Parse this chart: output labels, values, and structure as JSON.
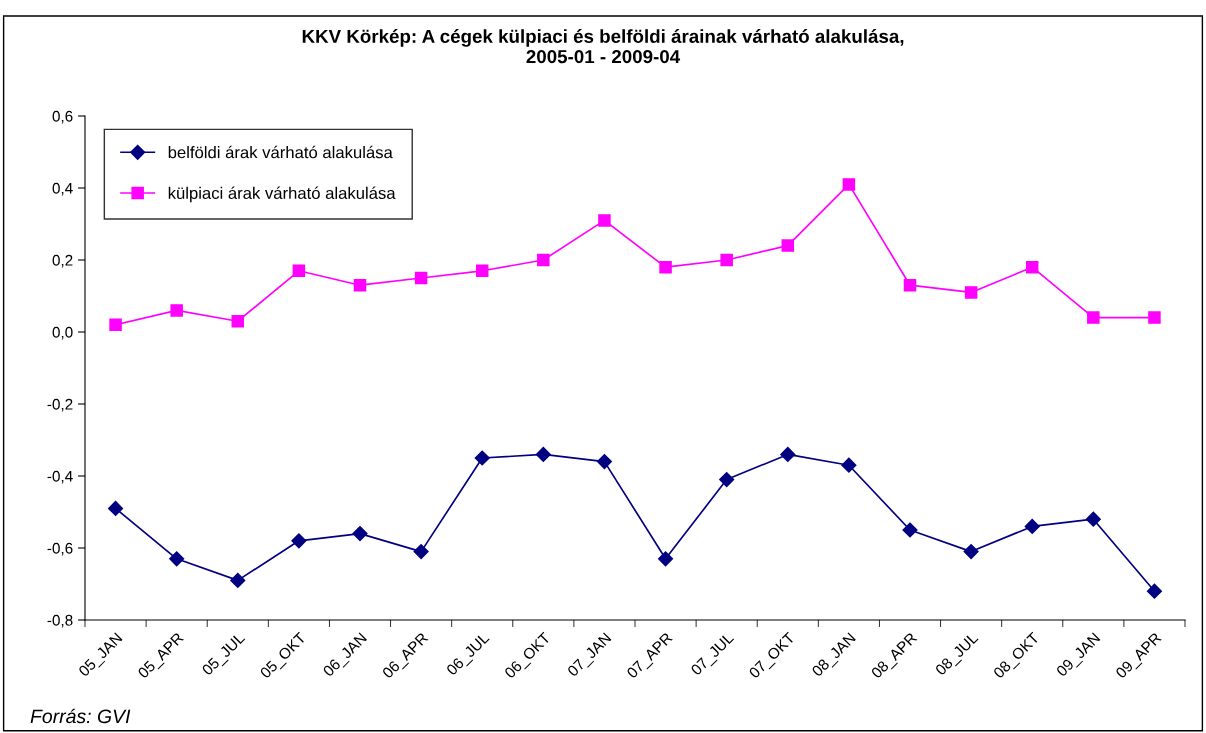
{
  "chart_data": {
    "type": "line",
    "title": "KKV Körkép: A cégek külpiaci és belföldi árainak várható alakulása,\n2005-01 - 2009-04",
    "categories": [
      "05_JAN",
      "05_APR",
      "05_JUL",
      "05_OKT",
      "06_JAN",
      "06_APR",
      "06_JUL",
      "06_OKT",
      "07_JAN",
      "07_APR",
      "07_JUL",
      "07_OKT",
      "08_JAN",
      "08_APR",
      "08_JUL",
      "08_OKT",
      "09_JAN",
      "09_APR"
    ],
    "series": [
      {
        "name": "belföldi árak várható alakulása",
        "color": "#000080",
        "marker": "diamond",
        "values": [
          -0.49,
          -0.63,
          -0.69,
          -0.58,
          -0.56,
          -0.61,
          -0.35,
          -0.34,
          -0.36,
          -0.63,
          -0.41,
          -0.34,
          -0.37,
          -0.55,
          -0.61,
          -0.54,
          -0.52,
          -0.72
        ]
      },
      {
        "name": "külpiaci árak várható alakulása",
        "color": "#ff00ff",
        "marker": "square",
        "values": [
          0.02,
          0.06,
          0.03,
          0.17,
          0.13,
          0.15,
          0.17,
          0.2,
          0.31,
          0.18,
          0.2,
          0.24,
          0.41,
          0.13,
          0.11,
          0.18,
          0.04,
          0.04
        ]
      }
    ],
    "ylim": [
      -0.8,
      0.6
    ],
    "yticks": [
      {
        "value": -0.8,
        "label": "-0,8"
      },
      {
        "value": -0.6,
        "label": "-0,6"
      },
      {
        "value": -0.4,
        "label": "-0,4"
      },
      {
        "value": -0.2,
        "label": "-0,2"
      },
      {
        "value": 0.0,
        "label": "0,0"
      },
      {
        "value": 0.2,
        "label": "0,2"
      },
      {
        "value": 0.4,
        "label": "0,4"
      },
      {
        "value": 0.6,
        "label": "0,6"
      }
    ],
    "legend": "top left",
    "grid": false,
    "line_style": "solid",
    "annotations": [
      "Forrás: GVI"
    ]
  }
}
